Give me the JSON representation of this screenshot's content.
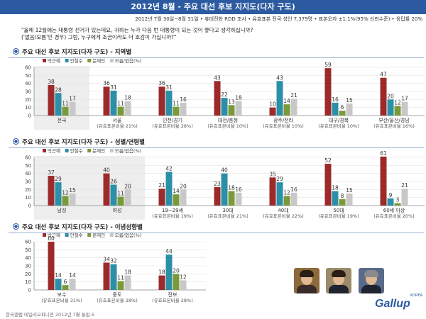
{
  "header": {
    "title": "2012년 8월 - 주요 대선 후보 지지도(다자 구도)"
  },
  "subheader": {
    "text": "2012년 7월 30일~8월 31일 • 휴대전화 RDD 조사 • 유효표본 전국 성인 7,379명 • 표본오차 ±1.1%(95% 신뢰수준) • 응답률 20%"
  },
  "question": {
    "line1": "\"올해 12월에는 대통령 선거가 있는데요, 귀하는 누가 다음 번 대통령이 되는 것이 좋다고 생각하십니까?",
    "line2": "('없음/모름'인 경우) 그럼, 누구에게 조금이라도 더 호감이 가십니까?\""
  },
  "colors": {
    "park": "#9c2a2a",
    "ahn": "#2c8fa8",
    "moon": "#7a9a3a",
    "none": "#c8c8c8",
    "header": "#2c5aa0"
  },
  "legend": [
    "박근혜",
    "안철수",
    "문재인",
    "모름/없음(%)"
  ],
  "sections": [
    {
      "title": "주요 대선 후보 지지도(다자 구도) - 지역별"
    },
    {
      "title": "주요 대선 후보 지지도(다자 구도) - 성별/연령별"
    },
    {
      "title": "주요 대선 후보 지지도(다자 구도) - 이념성향별"
    }
  ],
  "chart_data": [
    {
      "type": "bar",
      "ylim": [
        0,
        60
      ],
      "yticks": [
        0,
        10,
        20,
        30,
        40,
        50,
        60
      ],
      "categories": [
        "전국",
        "서울",
        "인천/경기",
        "대전/충청",
        "광주/전라",
        "대구/경북",
        "부산/울산/경남"
      ],
      "sublabels": [
        "",
        "(유효표본비율 21%)",
        "(유효표본비율 28%)",
        "(유효표본비율 10%)",
        "(유효표본비율 10%)",
        "(유효표본비율 10%)",
        "(유효표본비율 16%)"
      ],
      "series": [
        {
          "name": "박근혜",
          "values": [
            38,
            36,
            36,
            43,
            10,
            59,
            47
          ]
        },
        {
          "name": "안철수",
          "values": [
            28,
            31,
            31,
            22,
            43,
            16,
            20
          ]
        },
        {
          "name": "문재인",
          "values": [
            11,
            11,
            11,
            13,
            14,
            6,
            12
          ]
        },
        {
          "name": "모름/없음(%)",
          "values": [
            17,
            18,
            16,
            18,
            21,
            15,
            17
          ]
        }
      ]
    },
    {
      "type": "bar",
      "ylim": [
        0,
        60
      ],
      "yticks": [
        0,
        10,
        20,
        30,
        40,
        50,
        60
      ],
      "categories": [
        "남성",
        "여성",
        "19~29세",
        "30대",
        "40대",
        "50대",
        "60세 이상"
      ],
      "sublabels": [
        "",
        "",
        "(유효표본비율 19%)",
        "(유효표본비율 21%)",
        "(유효표본비율 22%)",
        "(유효표본비율 19%)",
        "(유효표본비율 20%)"
      ],
      "series": [
        {
          "name": "박근혜",
          "values": [
            37,
            40,
            21,
            23,
            35,
            52,
            61
          ]
        },
        {
          "name": "안철수",
          "values": [
            29,
            26,
            42,
            40,
            29,
            18,
            9
          ]
        },
        {
          "name": "문재인",
          "values": [
            12,
            11,
            14,
            18,
            12,
            8,
            3
          ]
        },
        {
          "name": "모름/없음(%)",
          "values": [
            15,
            20,
            20,
            16,
            16,
            15,
            21
          ]
        }
      ]
    },
    {
      "type": "bar",
      "ylim": [
        0,
        60
      ],
      "yticks": [
        0,
        10,
        20,
        30,
        40,
        50,
        60
      ],
      "categories": [
        "보수",
        "중도",
        "진보"
      ],
      "sublabels": [
        "(유효표본비율 31%)",
        "(유효표본비율 28%)",
        "(유효표본비율 28%)"
      ],
      "series": [
        {
          "name": "박근혜",
          "values": [
            60,
            34,
            18
          ]
        },
        {
          "name": "안철수",
          "values": [
            14,
            32,
            44
          ]
        },
        {
          "name": "문재인",
          "values": [
            6,
            11,
            20
          ]
        },
        {
          "name": "모름/없음(%)",
          "values": [
            14,
            18,
            12
          ]
        }
      ]
    }
  ],
  "footer": {
    "text": "한국갤럽 데일리오피니언 2012년 7월 통합-5"
  },
  "logo": {
    "text": "Gallup",
    "small": "KOREA"
  }
}
